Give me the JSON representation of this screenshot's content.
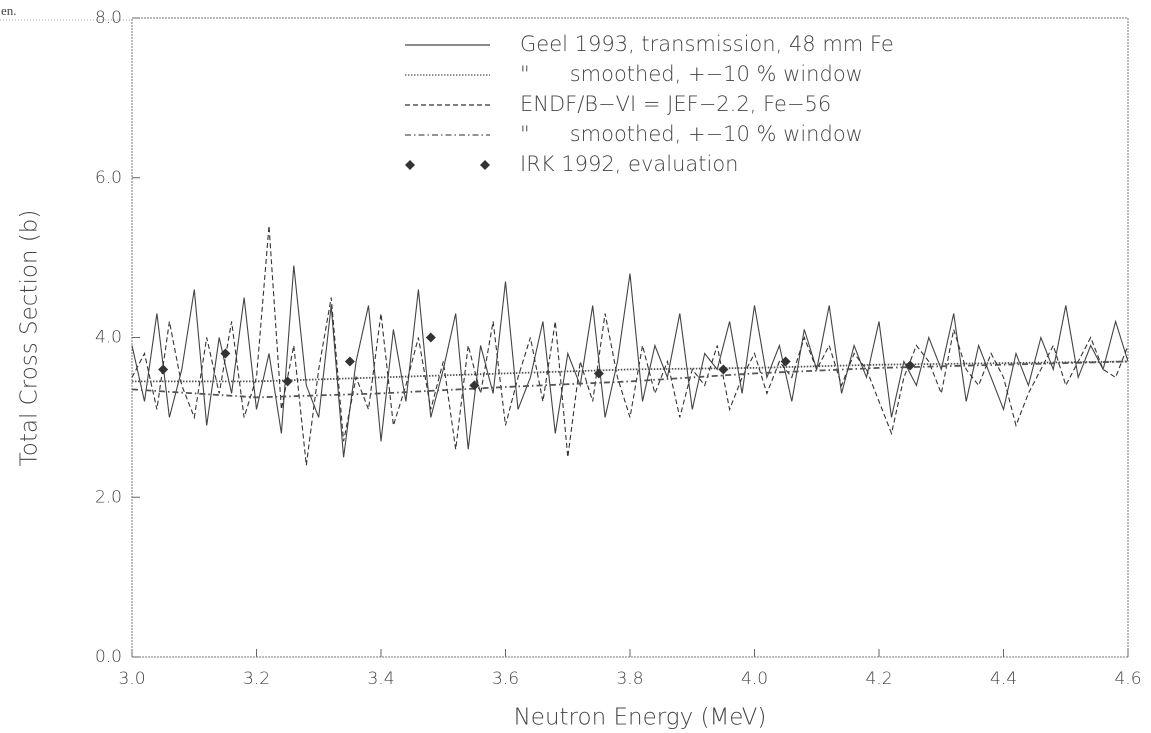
{
  "corner_text": "en.",
  "chart_data": {
    "type": "line",
    "x_label": "Neutron Energy (MeV)",
    "y_label": "Total Cross Section (b)",
    "xlim": [
      3.0,
      4.6
    ],
    "ylim": [
      0,
      8
    ],
    "xticks": [
      {
        "value": 3.0,
        "label": "3.0"
      },
      3.2,
      3.4,
      3.6,
      3.8,
      {
        "value": 4.0,
        "label": "4.0"
      },
      4.2,
      4.4,
      4.6
    ],
    "yticks": [
      {
        "value": 0,
        "label": "0.0"
      },
      {
        "value": 2,
        "label": "2.0"
      },
      {
        "value": 4,
        "label": "4.0"
      },
      {
        "value": 6,
        "label": "6.0"
      },
      {
        "value": 8,
        "label": "8.0"
      }
    ],
    "grid": false,
    "legend": "upper right",
    "x": [
      3.0,
      3.02,
      3.04,
      3.06,
      3.08,
      3.1,
      3.12,
      3.14,
      3.16,
      3.18,
      3.2,
      3.22,
      3.24,
      3.26,
      3.28,
      3.3,
      3.32,
      3.34,
      3.36,
      3.38,
      3.4,
      3.42,
      3.44,
      3.46,
      3.48,
      3.5,
      3.52,
      3.54,
      3.56,
      3.58,
      3.6,
      3.62,
      3.64,
      3.66,
      3.68,
      3.7,
      3.72,
      3.74,
      3.76,
      3.78,
      3.8,
      3.82,
      3.84,
      3.86,
      3.88,
      3.9,
      3.92,
      3.94,
      3.96,
      3.98,
      4.0,
      4.02,
      4.04,
      4.06,
      4.08,
      4.1,
      4.12,
      4.14,
      4.16,
      4.18,
      4.2,
      4.22,
      4.24,
      4.26,
      4.28,
      4.3,
      4.32,
      4.34,
      4.36,
      4.38,
      4.4,
      4.42,
      4.44,
      4.46,
      4.48,
      4.5,
      4.52,
      4.54,
      4.56,
      4.58,
      4.6
    ],
    "series": [
      {
        "name": "Geel 1993, transmission, 48 mm Fe",
        "color": "#444444",
        "style": "solid",
        "values": [
          3.9,
          3.2,
          4.3,
          3.0,
          3.6,
          4.6,
          2.9,
          4.0,
          3.3,
          4.5,
          3.1,
          3.8,
          2.8,
          4.9,
          3.4,
          3.0,
          4.4,
          2.5,
          3.7,
          4.4,
          2.7,
          4.1,
          3.2,
          4.6,
          3.0,
          3.6,
          4.3,
          2.6,
          3.9,
          3.3,
          4.7,
          3.1,
          3.5,
          4.2,
          2.8,
          3.8,
          3.4,
          4.4,
          3.0,
          3.7,
          4.8,
          3.2,
          3.9,
          3.5,
          4.3,
          3.1,
          3.8,
          3.6,
          4.2,
          3.3,
          4.4,
          3.5,
          3.9,
          3.2,
          4.1,
          3.6,
          4.4,
          3.3,
          3.9,
          3.5,
          4.2,
          3.0,
          3.7,
          3.4,
          4.0,
          3.6,
          4.3,
          3.2,
          3.9,
          3.5,
          3.1,
          3.8,
          3.4,
          4.0,
          3.6,
          4.4,
          3.5,
          3.9,
          3.6,
          4.2,
          3.7
        ]
      },
      {
        "name": "\"      smoothed, +−10 % window",
        "color": "#555555",
        "style": "dotted",
        "x": [
          3.0,
          3.2,
          3.4,
          3.6,
          3.8,
          4.0,
          4.2,
          4.4,
          4.6
        ],
        "values": [
          3.45,
          3.45,
          3.5,
          3.55,
          3.6,
          3.62,
          3.66,
          3.68,
          3.7
        ]
      },
      {
        "name": "ENDF/B−VI = JEF−2.2, Fe−56",
        "color": "#333333",
        "style": "dashed",
        "values": [
          3.5,
          3.8,
          3.1,
          4.2,
          3.4,
          3.0,
          4.0,
          3.3,
          4.2,
          3.0,
          3.5,
          5.4,
          3.1,
          3.9,
          2.4,
          3.6,
          4.5,
          2.7,
          3.5,
          3.1,
          4.3,
          2.9,
          3.4,
          4.0,
          3.1,
          3.7,
          2.6,
          3.9,
          3.3,
          4.2,
          2.9,
          3.5,
          4.0,
          3.2,
          4.2,
          2.5,
          3.7,
          3.2,
          4.3,
          3.5,
          3.0,
          3.9,
          3.3,
          3.7,
          3.0,
          3.6,
          3.4,
          3.9,
          3.1,
          3.5,
          3.8,
          3.3,
          3.7,
          3.5,
          4.0,
          3.6,
          3.9,
          3.4,
          3.8,
          3.6,
          3.2,
          2.8,
          3.5,
          3.9,
          3.7,
          3.3,
          4.1,
          3.6,
          3.4,
          3.8,
          3.5,
          2.9,
          3.3,
          3.6,
          3.9,
          3.4,
          3.7,
          4.0,
          3.6,
          3.5,
          3.9
        ]
      },
      {
        "name": "\"      smoothed, +−10 % window",
        "color": "#555555",
        "style": "dash-dot",
        "x": [
          3.0,
          3.2,
          3.4,
          3.6,
          3.8,
          4.0,
          4.2,
          4.4,
          4.6
        ],
        "values": [
          3.35,
          3.25,
          3.3,
          3.38,
          3.45,
          3.55,
          3.62,
          3.66,
          3.7
        ]
      },
      {
        "name": "IRK 1992, evaluation",
        "color": "#333333",
        "style": "marker",
        "x": [
          3.05,
          3.15,
          3.25,
          3.35,
          3.48,
          3.55,
          3.75,
          3.95,
          4.05,
          4.25
        ],
        "values": [
          3.6,
          3.8,
          3.45,
          3.7,
          4.0,
          3.4,
          3.55,
          3.6,
          3.7,
          3.65
        ]
      }
    ]
  }
}
